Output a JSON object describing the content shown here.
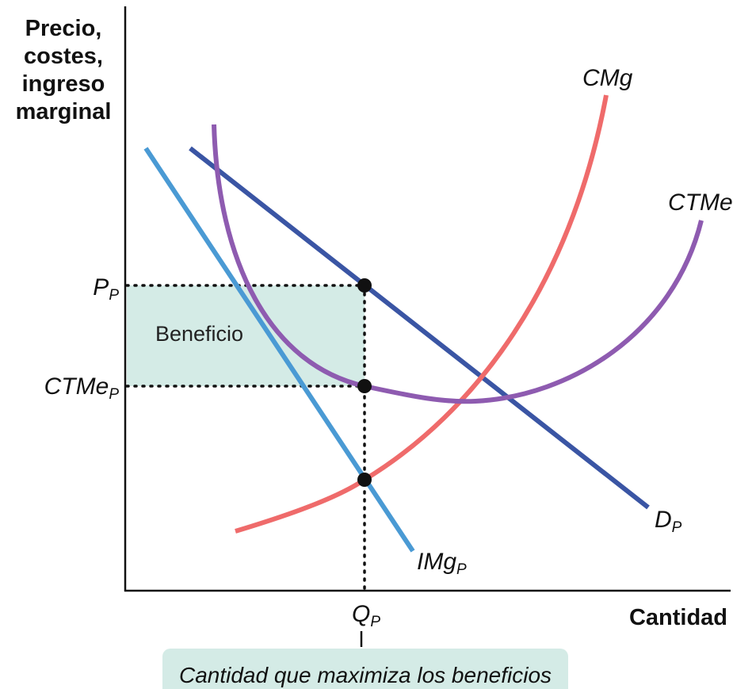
{
  "axes": {
    "y_title": [
      "Precio,",
      "costes,",
      "ingreso",
      "marginal"
    ],
    "x_title": "Cantidad"
  },
  "curves": {
    "marginal_cost": "CMg",
    "average_total_cost": "CTMe",
    "demand": {
      "main": "D",
      "sub": "P"
    },
    "marginal_revenue": {
      "main": "IMg",
      "sub": "P"
    }
  },
  "levels": {
    "price": {
      "main": "P",
      "sub": "P"
    },
    "average_cost": {
      "main": "CTMe",
      "sub": "P"
    },
    "quantity": {
      "main": "Q",
      "sub": "P"
    }
  },
  "profit_area": "Beneficio",
  "caption": "Cantidad que maximiza los beneficios"
}
